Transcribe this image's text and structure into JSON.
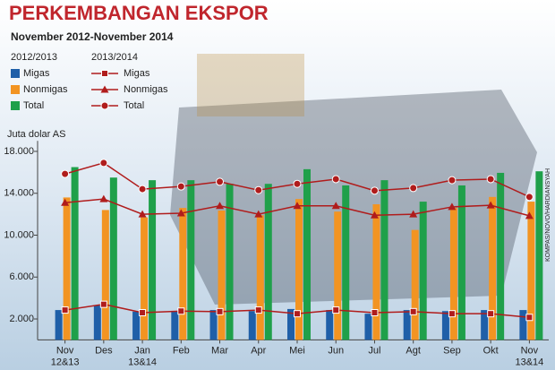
{
  "chart_data": {
    "type": "bar",
    "title": "PERKEMBANGAN EKSPOR",
    "subtitle": "November 2012-November 2014",
    "y_label": "Juta dolar AS",
    "credit": "KOMPAS/NOVO/HARDIANSYAH",
    "categories": [
      "Nov 12&13",
      "Des",
      "Jan 13&14",
      "Feb",
      "Mar",
      "Apr",
      "Mei",
      "Jun",
      "Jul",
      "Agt",
      "Sep",
      "Okt",
      "Nov 13&14"
    ],
    "ylim": [
      0,
      19000
    ],
    "yticks": [
      {
        "value": 2000,
        "label": "2.000"
      },
      {
        "value": 6000,
        "label": "6.000"
      },
      {
        "value": 10000,
        "label": "10.000"
      },
      {
        "value": 14000,
        "label": "14.000"
      },
      {
        "value": 18000,
        "label": "18.000"
      }
    ],
    "grid": false,
    "groups": [
      {
        "title": "2012/2013",
        "type": "bar",
        "series": [
          {
            "name": "Migas",
            "color": "#1f5fa8",
            "values": [
              2850,
              3300,
              2700,
              2750,
              2850,
              2750,
              2950,
              2850,
              2500,
              2850,
              2750,
              2850,
              2850
            ]
          },
          {
            "name": "Nonmigas",
            "color": "#f29422",
            "values": [
              13600,
              12400,
              11700,
              12600,
              12350,
              11900,
              13450,
              12250,
              12950,
              10500,
              12600,
              13650,
              13200
            ]
          },
          {
            "name": "Total",
            "color": "#1fa04a",
            "values": [
              16500,
              15500,
              15250,
              15250,
              14900,
              14900,
              16300,
              14750,
              15250,
              13200,
              14750,
              15950,
              16100
            ]
          }
        ]
      },
      {
        "title": "2013/2014",
        "type": "line",
        "series": [
          {
            "name": "Migas",
            "color": "#b01c1c",
            "marker": "square",
            "values": [
              2850,
              3400,
              2600,
              2750,
              2700,
              2850,
              2500,
              2850,
              2600,
              2700,
              2500,
              2500,
              2150
            ]
          },
          {
            "name": "Nonmigas",
            "color": "#b01c1c",
            "marker": "triangle",
            "values": [
              13100,
              13450,
              12000,
              12100,
              12800,
              12000,
              12800,
              12800,
              11900,
              12000,
              12700,
              12850,
              11850
            ]
          },
          {
            "name": "Total",
            "color": "#b01c1c",
            "marker": "circle",
            "values": [
              15850,
              16900,
              14400,
              14650,
              15100,
              14300,
              14900,
              15350,
              14250,
              14500,
              15250,
              15350,
              13650
            ]
          }
        ]
      }
    ]
  }
}
